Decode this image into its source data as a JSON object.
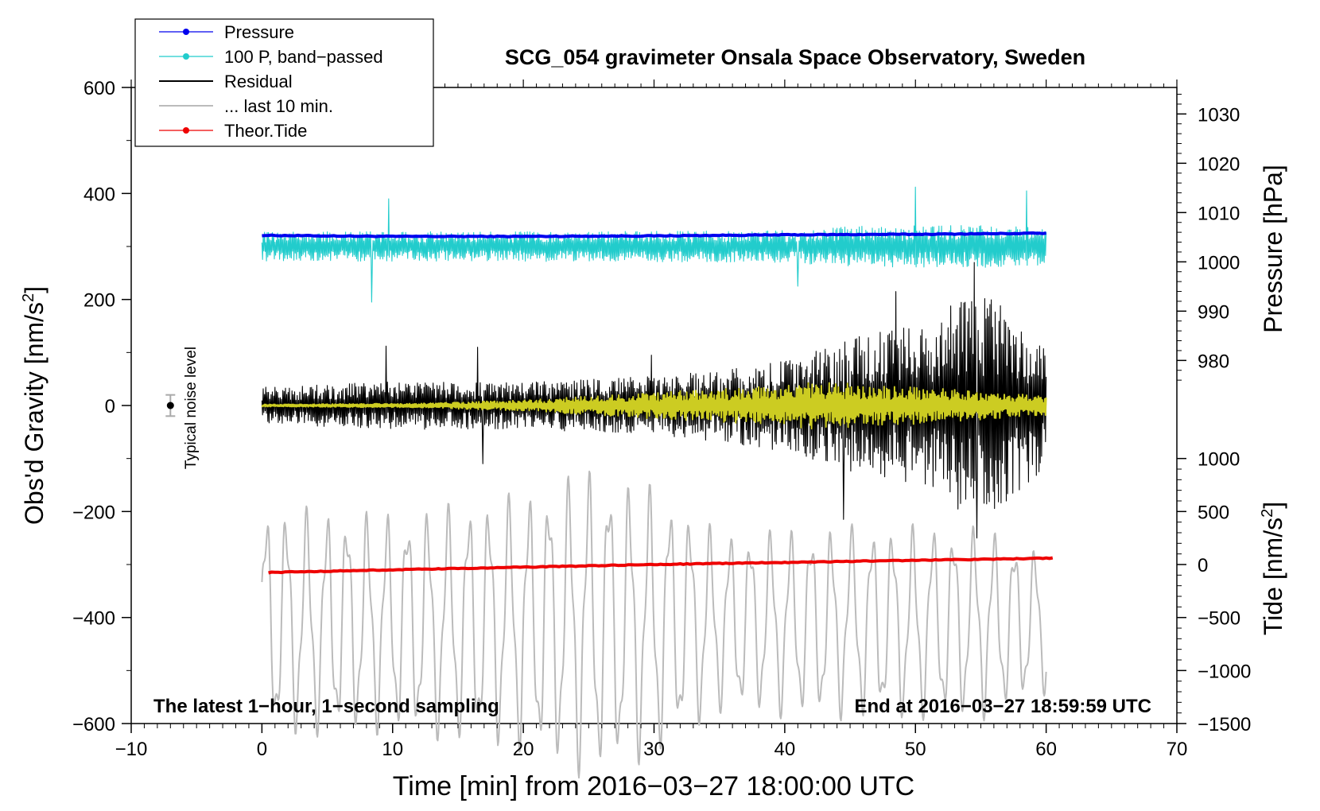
{
  "chart_data": {
    "type": "line",
    "title": "SCG_054 gravimeter Onsala Space Observatory, Sweden",
    "xlabel": "Time [min] from 2016−03−27 18:00:00 UTC",
    "ylabel_left": "Obs'd Gravity [nm/s",
    "ylabel_left_sup": "2",
    "ylabel_left_end": "]",
    "ylabel_right_top": "Pressure [hPa]",
    "ylabel_right_bottom": "Tide [nm/s",
    "ylabel_right_bottom_sup": "2",
    "ylabel_right_bottom_end": "]",
    "xlim": [
      -10,
      70
    ],
    "ylim_left": [
      -600,
      600
    ],
    "x_ticks": [
      "−10",
      "0",
      "10",
      "20",
      "30",
      "40",
      "50",
      "60",
      "70"
    ],
    "x_tick_values": [
      -10,
      0,
      10,
      20,
      30,
      40,
      50,
      60,
      70
    ],
    "y_left_ticks": [
      "600",
      "400",
      "200",
      "0",
      "−200",
      "−400",
      "−600"
    ],
    "y_left_tick_values": [
      600,
      400,
      200,
      0,
      -200,
      -400,
      -600
    ],
    "pressure_axis": {
      "ticks": [
        "1030",
        "1020",
        "1010",
        "1000",
        "990",
        "980"
      ],
      "tick_values": [
        1030,
        1020,
        1010,
        1000,
        990,
        980
      ],
      "left_value_at_1030": 550,
      "left_units_per_hPa": 9.3
    },
    "tide_axis": {
      "ticks": [
        "1000",
        "500",
        "0",
        "−500",
        "−1000",
        "−1500"
      ],
      "tick_values": [
        1000,
        500,
        0,
        -500,
        -1000,
        -1500
      ],
      "left_value_at_0": -300,
      "left_units_per_nms2": 0.2
    },
    "legend": {
      "position": "top-left",
      "entries": [
        {
          "label": "Pressure",
          "color": "#0000ee",
          "marker": true
        },
        {
          "label": "100 P, band−passed",
          "color": "#22cccc",
          "marker": true
        },
        {
          "label": "Residual",
          "color": "#000000",
          "marker": false
        },
        {
          "label": "... last 10 min.",
          "color": "#bbbbbb",
          "marker": false
        },
        {
          "label": "Theor.Tide",
          "color": "#ee0000",
          "marker": true
        }
      ]
    },
    "annotations": {
      "bottom_left": "The latest 1−hour, 1−second sampling",
      "bottom_right": "End at 2016−03−27 18:59:59 UTC",
      "noise_label": "Typical noise level"
    },
    "noise_bar": {
      "x": -7,
      "y": 0,
      "half_range": 20
    },
    "series": [
      {
        "name": "Pressure",
        "color": "#0000ee",
        "kind": "trend",
        "x": [
          0,
          10,
          20,
          30,
          40,
          50,
          60
        ],
        "y": [
          321,
          319,
          319,
          320,
          322,
          323,
          325
        ]
      },
      {
        "name": "100 P, band−passed",
        "color": "#22cccc",
        "kind": "noise",
        "x_range": [
          0,
          60
        ],
        "center": 300,
        "amp_envelope": {
          "x": [
            0,
            20,
            40,
            45,
            55,
            60
          ],
          "a": [
            28,
            28,
            30,
            38,
            40,
            35
          ]
        },
        "spikes": [
          [
            8.4,
            195
          ],
          [
            9.7,
            390
          ],
          [
            41,
            225
          ],
          [
            50,
            412
          ],
          [
            58.5,
            405
          ]
        ]
      },
      {
        "name": "Residual",
        "color": "#000000",
        "kind": "noise",
        "x_range": [
          0,
          60
        ],
        "center": 0,
        "amp_envelope": {
          "x": [
            0,
            10,
            20,
            30,
            35,
            41,
            45,
            50,
            55,
            60
          ],
          "a": [
            35,
            45,
            45,
            55,
            70,
            90,
            130,
            150,
            220,
            120
          ]
        },
        "spikes": [
          [
            9.5,
            112
          ],
          [
            16.5,
            110
          ],
          [
            16.9,
            -110
          ],
          [
            29.8,
            95
          ],
          [
            44.5,
            -215
          ],
          [
            48.5,
            215
          ],
          [
            54.5,
            270
          ],
          [
            54.7,
            -250
          ]
        ]
      },
      {
        "name": "Residual (smoothed)",
        "color": "#cccc22",
        "kind": "noise",
        "x_range": [
          0,
          60
        ],
        "center": 0,
        "amp_envelope": {
          "x": [
            0,
            12,
            20,
            30,
            38,
            42,
            50,
            60
          ],
          "a": [
            2,
            4,
            10,
            25,
            35,
            45,
            35,
            18
          ]
        },
        "spikes": []
      },
      {
        "name": "... last 10 min.",
        "color": "#bbbbbb",
        "kind": "oscillation",
        "x_range": [
          0,
          60
        ],
        "center": -410,
        "period": 1.55,
        "amp_envelope": {
          "x": [
            0,
            10,
            20,
            25,
            30,
            35,
            45,
            55,
            60
          ],
          "a": [
            180,
            170,
            200,
            240,
            210,
            140,
            150,
            150,
            110
          ]
        }
      },
      {
        "name": "Theor.Tide",
        "color": "#ee0000",
        "kind": "trend",
        "x": [
          0.5,
          10,
          20,
          30,
          40,
          50,
          60.5
        ],
        "y": [
          -315,
          -310,
          -305,
          -300,
          -296,
          -292,
          -288
        ]
      }
    ]
  }
}
